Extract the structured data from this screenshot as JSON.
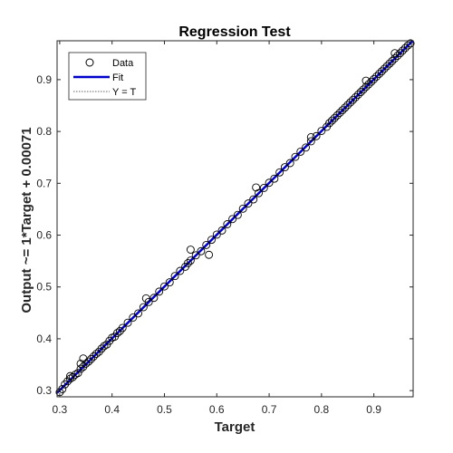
{
  "chart_data": {
    "type": "scatter",
    "title": "Regression Test",
    "xlabel": "Target",
    "ylabel": "Output ~= 1*Target + 0.00071",
    "xlim": [
      0.295,
      0.975
    ],
    "ylim": [
      0.288,
      0.975
    ],
    "xticks": [
      "0.3",
      "0.4",
      "0.5",
      "0.6",
      "0.7",
      "0.8",
      "0.9"
    ],
    "yticks": [
      "0.3",
      "0.4",
      "0.5",
      "0.6",
      "0.7",
      "0.8",
      "0.9"
    ],
    "xtick_values": [
      0.3,
      0.4,
      0.5,
      0.6,
      0.7,
      0.8,
      0.9
    ],
    "ytick_values": [
      0.3,
      0.4,
      0.5,
      0.6,
      0.7,
      0.8,
      0.9
    ],
    "grid": false,
    "legend_position": "top-left",
    "legend": [
      {
        "label": "Data",
        "style": "circle-marker",
        "color": "#000000"
      },
      {
        "label": "Fit",
        "style": "solid-line",
        "color": "#0000cc"
      },
      {
        "label": "Y = T",
        "style": "dotted-line",
        "color": "#333333"
      }
    ],
    "fit": {
      "slope": 1,
      "intercept": 0.00071,
      "color": "#0000cc"
    },
    "identity_line": {
      "color": "#333333"
    },
    "series": [
      {
        "name": "Data",
        "marker": "circle",
        "color": "#000000",
        "x": [
          0.3,
          0.305,
          0.31,
          0.315,
          0.32,
          0.325,
          0.33,
          0.335,
          0.34,
          0.345,
          0.35,
          0.355,
          0.36,
          0.365,
          0.37,
          0.375,
          0.38,
          0.385,
          0.39,
          0.395,
          0.4,
          0.405,
          0.41,
          0.415,
          0.42,
          0.43,
          0.44,
          0.45,
          0.46,
          0.47,
          0.48,
          0.49,
          0.5,
          0.51,
          0.52,
          0.53,
          0.54,
          0.545,
          0.55,
          0.56,
          0.57,
          0.58,
          0.59,
          0.6,
          0.61,
          0.62,
          0.63,
          0.64,
          0.65,
          0.66,
          0.67,
          0.68,
          0.69,
          0.7,
          0.71,
          0.72,
          0.73,
          0.74,
          0.75,
          0.76,
          0.77,
          0.78,
          0.79,
          0.8,
          0.81,
          0.815,
          0.82,
          0.825,
          0.83,
          0.835,
          0.84,
          0.845,
          0.85,
          0.855,
          0.86,
          0.865,
          0.87,
          0.875,
          0.88,
          0.885,
          0.89,
          0.895,
          0.9,
          0.905,
          0.91,
          0.915,
          0.92,
          0.925,
          0.93,
          0.935,
          0.94,
          0.945,
          0.95,
          0.955,
          0.96,
          0.965,
          0.97,
          0.55,
          0.585,
          0.345,
          0.34,
          0.465,
          0.675,
          0.94,
          0.32,
          0.78,
          0.885
        ],
        "y": [
          0.297,
          0.303,
          0.312,
          0.318,
          0.323,
          0.326,
          0.331,
          0.334,
          0.342,
          0.346,
          0.352,
          0.356,
          0.361,
          0.366,
          0.371,
          0.375,
          0.381,
          0.386,
          0.389,
          0.396,
          0.402,
          0.404,
          0.411,
          0.415,
          0.421,
          0.431,
          0.441,
          0.449,
          0.461,
          0.471,
          0.479,
          0.491,
          0.501,
          0.509,
          0.521,
          0.531,
          0.539,
          0.546,
          0.551,
          0.561,
          0.569,
          0.581,
          0.591,
          0.601,
          0.609,
          0.621,
          0.631,
          0.639,
          0.651,
          0.661,
          0.669,
          0.681,
          0.691,
          0.701,
          0.709,
          0.721,
          0.731,
          0.739,
          0.751,
          0.761,
          0.769,
          0.781,
          0.791,
          0.801,
          0.809,
          0.816,
          0.821,
          0.826,
          0.831,
          0.836,
          0.841,
          0.846,
          0.851,
          0.856,
          0.861,
          0.866,
          0.871,
          0.876,
          0.881,
          0.886,
          0.891,
          0.896,
          0.901,
          0.906,
          0.911,
          0.916,
          0.921,
          0.926,
          0.931,
          0.936,
          0.941,
          0.946,
          0.951,
          0.956,
          0.961,
          0.966,
          0.97,
          0.572,
          0.562,
          0.362,
          0.352,
          0.478,
          0.692,
          0.951,
          0.328,
          0.789,
          0.898
        ]
      }
    ]
  }
}
